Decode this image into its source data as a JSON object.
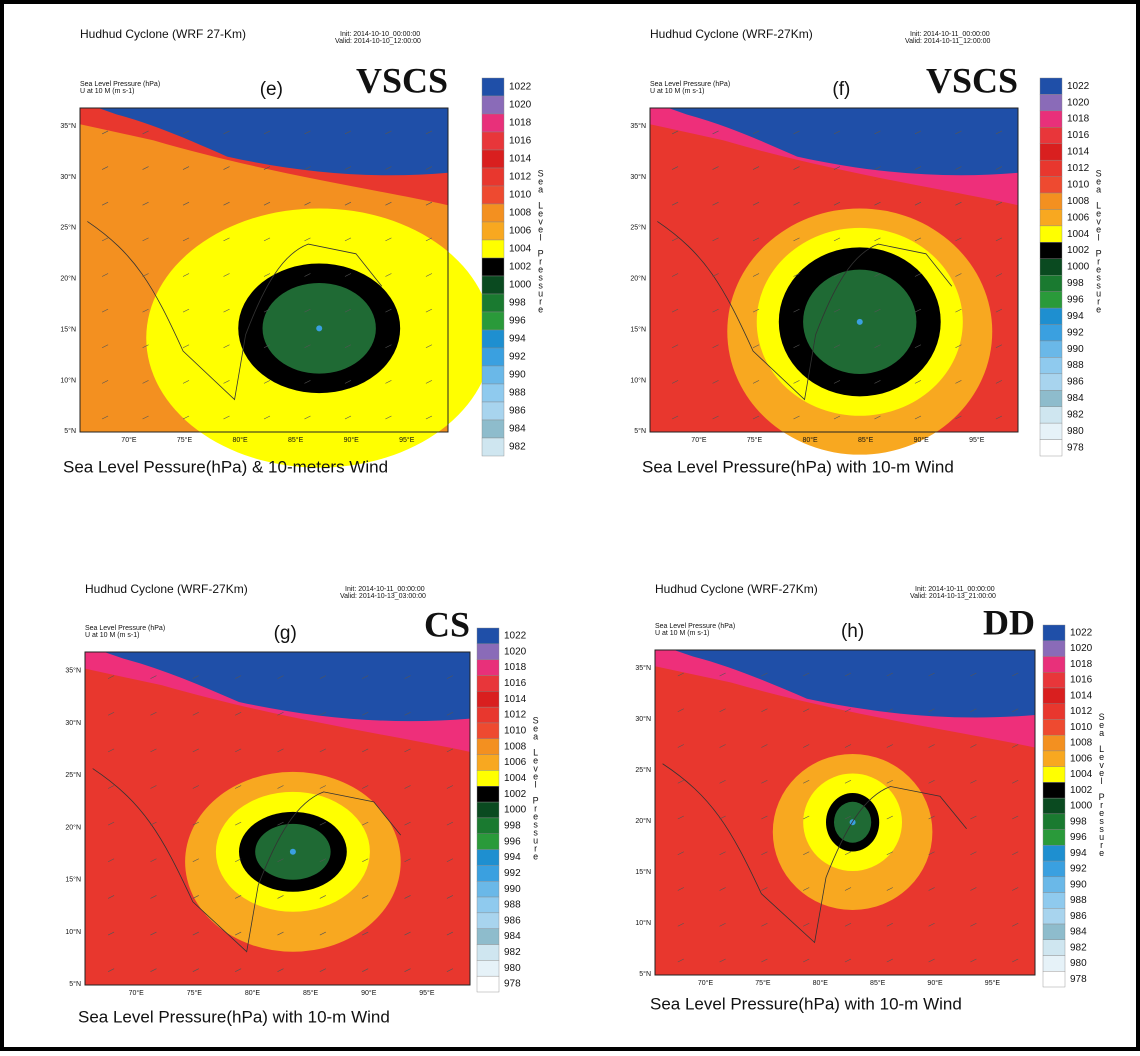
{
  "panels": [
    {
      "title": "Hudhud Cyclone (WRF 27-Km)",
      "init": "Init: 2014-10-10_00:00:00",
      "valid": "Valid: 2014-10-10_12:00:00",
      "letter": "(e)",
      "category": "VSCS",
      "field_label": "Sea Level Pressure  (hPa)",
      "wind_label": "U at 10 M  (m s-1)",
      "colorbar_title": "Sea Level Pressure",
      "levels": [
        1022,
        1020,
        1018,
        1016,
        1014,
        1012,
        1010,
        1008,
        1006,
        1004,
        1002,
        1000,
        998,
        996,
        994,
        992,
        990,
        988,
        986,
        984,
        982
      ],
      "caption": "Sea Level Pessure(hPa) & 10-meters Wind"
    },
    {
      "title": "Hudhud Cyclone (WRF-27Km)",
      "init": "Init: 2014-10-11_00:00:00",
      "valid": "Valid: 2014-10-11_12:00:00",
      "letter": "(f)",
      "category": "VSCS",
      "field_label": "Sea Level Pressure  (hPa)",
      "wind_label": "U at 10 M  (m s-1)",
      "colorbar_title": "Sea Level Pressure",
      "levels": [
        1022,
        1020,
        1018,
        1016,
        1014,
        1012,
        1010,
        1008,
        1006,
        1004,
        1002,
        1000,
        998,
        996,
        994,
        992,
        990,
        988,
        986,
        984,
        982,
        980,
        978
      ],
      "caption": "Sea Level Pressure(hPa) with 10-m Wind"
    },
    {
      "title": "Hudhud Cyclone (WRF-27Km)",
      "init": "Init: 2014-10-11_00:00:00",
      "valid": "Valid: 2014-10-13_03:00:00",
      "letter": "(g)",
      "category": "CS",
      "field_label": "Sea Level Pressure  (hPa)",
      "wind_label": "U at 10 M  (m s-1)",
      "colorbar_title": "Sea Level Pressure",
      "levels": [
        1022,
        1020,
        1018,
        1016,
        1014,
        1012,
        1010,
        1008,
        1006,
        1004,
        1002,
        1000,
        998,
        996,
        994,
        992,
        990,
        988,
        986,
        984,
        982,
        980,
        978
      ],
      "caption": "Sea Level Pressure(hPa) with 10-m Wind"
    },
    {
      "title": "Hudhud Cyclone (WRF-27Km)",
      "init": "Init: 2014-10-11_00:00:00",
      "valid": "Valid: 2014-10-13_21:00:00",
      "letter": "(h)",
      "category": "DD",
      "field_label": "Sea Level Pressure  (hPa)",
      "wind_label": "U at 10 M  (m s-1)",
      "colorbar_title": "Sea Level Pressure",
      "levels": [
        1022,
        1020,
        1018,
        1016,
        1014,
        1012,
        1010,
        1008,
        1006,
        1004,
        1002,
        1000,
        998,
        996,
        994,
        992,
        990,
        988,
        986,
        984,
        982,
        980,
        978
      ],
      "caption": "Sea Level Pressure(hPa) with 10-m Wind"
    }
  ],
  "lat_labels": [
    "35°N",
    "30°N",
    "25°N",
    "20°N",
    "15°N",
    "10°N",
    "5°N"
  ],
  "lon_labels": [
    "70°E",
    "75°E",
    "80°E",
    "85°E",
    "90°E",
    "95°E"
  ]
}
